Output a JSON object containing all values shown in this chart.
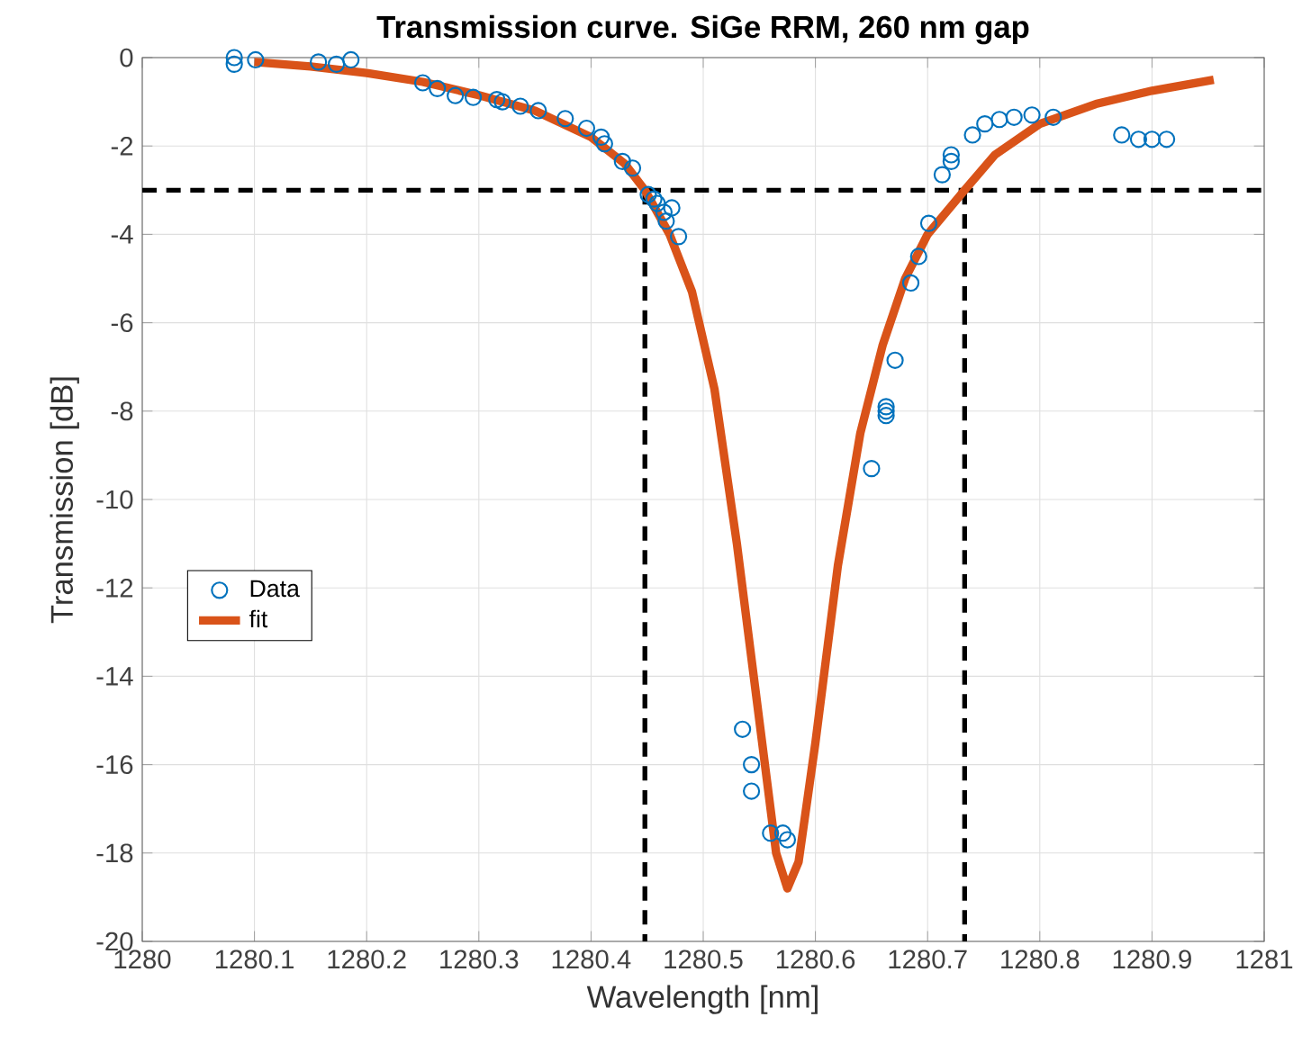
{
  "chart_data": {
    "type": "scatter",
    "title": "Transmission curve. SiGe RRM, 260 nm gap",
    "xlabel": "Wavelength [nm]",
    "ylabel": "Transmission [dB]",
    "xlim": [
      1280,
      1281
    ],
    "ylim": [
      -20,
      0
    ],
    "xticks": [
      1280,
      1280.1,
      1280.2,
      1280.3,
      1280.4,
      1280.5,
      1280.6,
      1280.7,
      1280.8,
      1280.9,
      1281
    ],
    "yticks": [
      -20,
      -18,
      -16,
      -14,
      -12,
      -10,
      -8,
      -6,
      -4,
      -2,
      0
    ],
    "grid": true,
    "legend": "left",
    "series": [
      {
        "name": "Data",
        "marker": "circle",
        "color": "#0072bd",
        "x": [
          1280.082,
          1280.082,
          1280.101,
          1280.157,
          1280.173,
          1280.186,
          1280.25,
          1280.263,
          1280.279,
          1280.295,
          1280.316,
          1280.321,
          1280.337,
          1280.353,
          1280.377,
          1280.396,
          1280.409,
          1280.412,
          1280.428,
          1280.437,
          1280.451,
          1280.456,
          1280.459,
          1280.465,
          1280.467,
          1280.472,
          1280.478,
          1280.535,
          1280.543,
          1280.543,
          1280.56,
          1280.571,
          1280.575,
          1280.65,
          1280.663,
          1280.663,
          1280.663,
          1280.671,
          1280.685,
          1280.692,
          1280.701,
          1280.713,
          1280.721,
          1280.721,
          1280.74,
          1280.751,
          1280.764,
          1280.777,
          1280.793,
          1280.812,
          1280.873,
          1280.888,
          1280.9,
          1280.913
        ],
        "values": [
          0,
          -0.15,
          -0.05,
          -0.1,
          -0.15,
          -0.05,
          -0.57,
          -0.7,
          -0.86,
          -0.9,
          -0.95,
          -1.0,
          -1.1,
          -1.2,
          -1.38,
          -1.6,
          -1.8,
          -1.95,
          -2.35,
          -2.5,
          -3.1,
          -3.2,
          -3.3,
          -3.5,
          -3.7,
          -3.4,
          -4.05,
          -15.2,
          -16.0,
          -16.6,
          -17.55,
          -17.55,
          -17.7,
          -9.3,
          -7.9,
          -8.0,
          -8.1,
          -6.85,
          -5.1,
          -4.5,
          -3.75,
          -2.65,
          -2.35,
          -2.2,
          -1.75,
          -1.5,
          -1.4,
          -1.35,
          -1.3,
          -1.35,
          -1.75,
          -1.85,
          -1.85,
          -1.85
        ]
      },
      {
        "name": "fit",
        "type": "line",
        "marker": "none",
        "color": "#d95319",
        "x": [
          1280.1,
          1280.15,
          1280.2,
          1280.25,
          1280.3,
          1280.35,
          1280.4,
          1280.43,
          1280.448,
          1280.47,
          1280.49,
          1280.51,
          1280.53,
          1280.55,
          1280.565,
          1280.575,
          1280.585,
          1280.6,
          1280.62,
          1280.64,
          1280.66,
          1280.68,
          1280.7,
          1280.733,
          1280.76,
          1280.8,
          1280.85,
          1280.9,
          1280.955
        ],
        "values": [
          -0.1,
          -0.2,
          -0.35,
          -0.55,
          -0.85,
          -1.2,
          -1.8,
          -2.4,
          -3.0,
          -4.0,
          -5.3,
          -7.5,
          -11,
          -15,
          -18,
          -18.8,
          -18.2,
          -15.5,
          -11.5,
          -8.5,
          -6.5,
          -5.0,
          -4.0,
          -3.0,
          -2.2,
          -1.5,
          -1.05,
          -0.75,
          -0.5
        ]
      }
    ],
    "ref_lines": [
      {
        "axis": "y",
        "value": -3,
        "color": "#000000",
        "line_style": "dashed"
      },
      {
        "axis": "x",
        "value": 1280.448,
        "color": "#000000",
        "line_style": "dashed"
      },
      {
        "axis": "x",
        "value": 1280.733,
        "color": "#000000",
        "line_style": "dashed"
      }
    ]
  }
}
